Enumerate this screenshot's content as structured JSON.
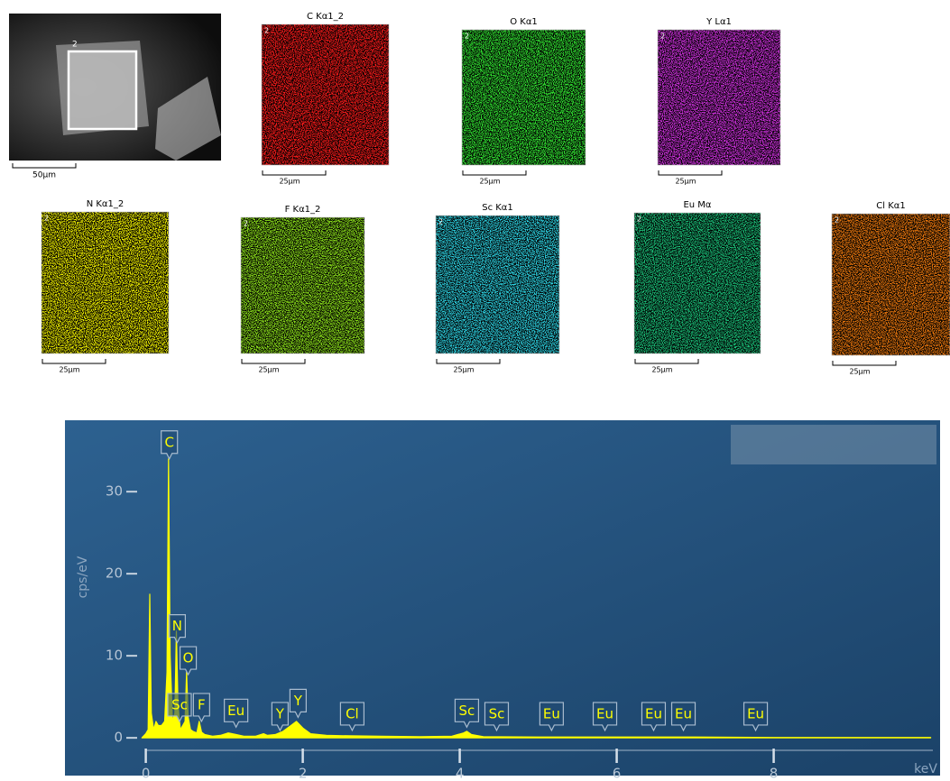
{
  "sem": {
    "scale_label": "50µm",
    "region_label": "2"
  },
  "maps": [
    {
      "title": "C Kα1_2",
      "color": "#ff1a1a",
      "scale_label": "25µm"
    },
    {
      "title": "O Kα1",
      "color": "#33e633",
      "scale_label": "25µm"
    },
    {
      "title": "Y Lα1",
      "color": "#d633e6",
      "scale_label": "25µm"
    },
    {
      "title": "N Kα1_2",
      "color": "#f0f000",
      "scale_label": "25µm"
    },
    {
      "title": "F Kα1_2",
      "color": "#8fe61a",
      "scale_label": "25µm"
    },
    {
      "title": "Sc Kα1",
      "color": "#2ed6e6",
      "scale_label": "25µm"
    },
    {
      "title": "Eu Mα",
      "color": "#1ac27a",
      "scale_label": "25µm"
    },
    {
      "title": "Cl Kα1",
      "color": "#f07a10",
      "scale_label": "25µm"
    }
  ],
  "chart_data": {
    "type": "area",
    "y_label": "cps/eV",
    "x_label": "keV",
    "xlim": [
      -1.03,
      10.12
    ],
    "ylim": [
      -4.6,
      38.7
    ],
    "xticks": [
      0,
      2,
      4,
      6,
      8
    ],
    "yticks": [
      0,
      10,
      20,
      30
    ],
    "color": "#ffff00",
    "x": [
      -0.05,
      0,
      0.03,
      0.05,
      0.07,
      0.1,
      0.13,
      0.16,
      0.2,
      0.24,
      0.27,
      0.29,
      0.31,
      0.34,
      0.37,
      0.39,
      0.41,
      0.44,
      0.47,
      0.5,
      0.52,
      0.54,
      0.57,
      0.6,
      0.65,
      0.68,
      0.71,
      0.75,
      0.85,
      0.95,
      1.05,
      1.15,
      1.25,
      1.4,
      1.5,
      1.55,
      1.65,
      1.75,
      1.85,
      1.92,
      2.0,
      2.1,
      2.3,
      2.6,
      3.0,
      3.5,
      3.9,
      4.05,
      4.09,
      4.15,
      4.3,
      5,
      6,
      7,
      8,
      9,
      10
    ],
    "values": [
      0,
      0.5,
      1,
      17.5,
      3,
      1,
      2,
      1.5,
      1.5,
      2,
      8,
      34,
      10,
      2,
      3,
      13,
      4,
      1,
      1.5,
      2,
      8,
      2.5,
      1,
      0.8,
      0.6,
      2,
      0.7,
      0.4,
      0.2,
      0.3,
      0.6,
      0.4,
      0.2,
      0.2,
      0.5,
      0.3,
      0.4,
      0.8,
      1.5,
      2,
      1.2,
      0.5,
      0.3,
      0.25,
      0.2,
      0.15,
      0.2,
      0.6,
      0.8,
      0.4,
      0.15,
      0.1,
      0.1,
      0.1,
      0.05,
      0.05,
      0.05
    ],
    "peak_labels": [
      {
        "label": "C",
        "x": 0.3,
        "y": 34
      },
      {
        "label": "N",
        "x": 0.4,
        "y": 11.6
      },
      {
        "label": "O",
        "x": 0.54,
        "y": 7.7
      },
      {
        "label": "Sc",
        "x": 0.43,
        "y": 2
      },
      {
        "label": "F",
        "x": 0.71,
        "y": 2
      },
      {
        "label": "Eu",
        "x": 1.15,
        "y": 1.3
      },
      {
        "label": "Y",
        "x": 1.71,
        "y": 0.9
      },
      {
        "label": "Y",
        "x": 1.94,
        "y": 2.5
      },
      {
        "label": "Cl",
        "x": 2.63,
        "y": 0.9
      },
      {
        "label": "Sc",
        "x": 4.09,
        "y": 1.3
      },
      {
        "label": "Sc",
        "x": 4.47,
        "y": 0.9
      },
      {
        "label": "Eu",
        "x": 5.17,
        "y": 0.9
      },
      {
        "label": "Eu",
        "x": 5.85,
        "y": 0.9
      },
      {
        "label": "Eu",
        "x": 6.47,
        "y": 0.9
      },
      {
        "label": "Eu",
        "x": 6.85,
        "y": 0.9
      },
      {
        "label": "Eu",
        "x": 7.77,
        "y": 0.9
      }
    ]
  }
}
